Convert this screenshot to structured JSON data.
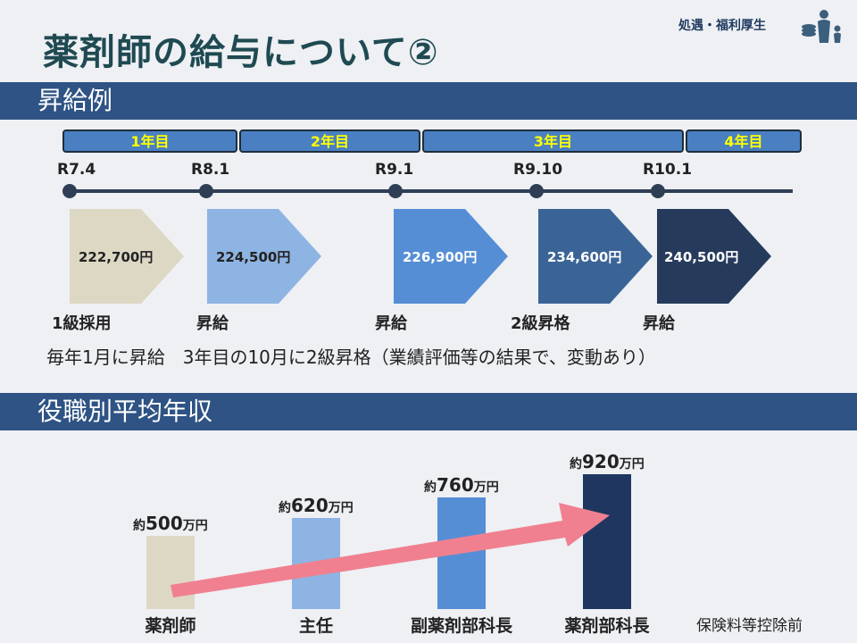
{
  "header": {
    "title": "薬剤師の給与について②",
    "category": "処遇・福利厚生",
    "icon": "parent-child-coins-icon"
  },
  "section1": {
    "title": "昇給例",
    "years": [
      "1年目",
      "2年目",
      "3年目",
      "4年目"
    ],
    "dates": [
      "R7.4",
      "R8.1",
      "R9.1",
      "R9.10",
      "R10.1"
    ],
    "salaries": [
      "222,700円",
      "224,500円",
      "226,900円",
      "234,600円",
      "240,500円"
    ],
    "steps": [
      "1級採用",
      "昇給",
      "昇給",
      "2級昇格",
      "昇給"
    ],
    "note": "毎年1月に昇給　3年目の10月に2級昇格（業績評価等の結果で、変動あり）",
    "colors": [
      "#ddd8c4",
      "#8eb4e3",
      "#558ed5",
      "#3b6496",
      "#263b5c"
    ]
  },
  "section2": {
    "title": "役職別平均年収",
    "prefix": "約",
    "unit": "万円",
    "footnote": "保険料等控除前"
  },
  "chart_data": {
    "type": "bar",
    "categories": [
      "薬剤師",
      "主任",
      "副薬剤部科長",
      "薬剤部科長"
    ],
    "values": [
      500,
      620,
      760,
      920
    ],
    "colors": [
      "#ddd8c4",
      "#8eb4e3",
      "#558ed5",
      "#1f3760"
    ],
    "trend_arrow_color": "#f08090"
  }
}
